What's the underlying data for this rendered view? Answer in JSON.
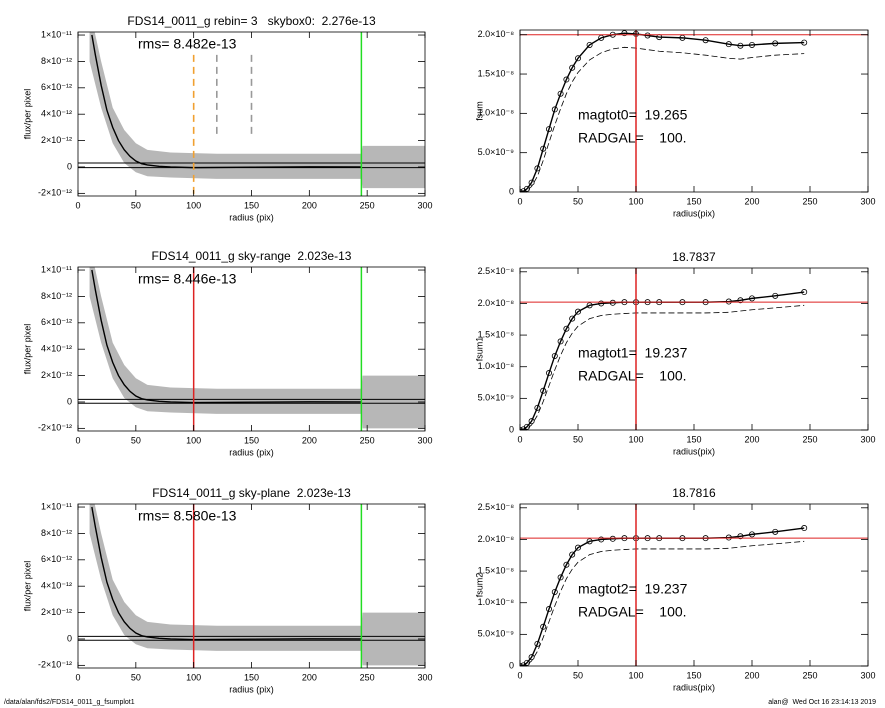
{
  "chart_data": [
    {
      "type": "line",
      "title": "FDS14_0011_g rebin= 3   skybox0:  2.276e-13",
      "annotations": [
        "rms= 8.482e-13"
      ],
      "xlabel": "radius (pix)",
      "ylabel": "flux/per pixel",
      "xlim": [
        0,
        300
      ],
      "ylim": [
        -2.2e-12,
        1.023e-11
      ],
      "xticks": [
        0,
        50,
        100,
        150,
        200,
        250,
        300
      ],
      "yticks": [
        {
          "value": -2e-12,
          "label": "-2×10⁻¹²"
        },
        0,
        {
          "value": 2e-12,
          "label": "2×10⁻¹²"
        },
        {
          "value": 4e-12,
          "label": "4×10⁻¹²"
        },
        {
          "value": 6e-12,
          "label": "6×10⁻¹²"
        },
        {
          "value": 8e-12,
          "label": "8×10⁻¹²"
        },
        {
          "value": 1e-11,
          "label": "1×10⁻¹¹"
        }
      ],
      "band": {
        "color": "#aaaaaa",
        "x": [
          10,
          20,
          30,
          40,
          50,
          60,
          80,
          120,
          160,
          200,
          245,
          246,
          300
        ],
        "high": [
          1.2e-11,
          8e-12,
          4.5e-12,
          2.8e-12,
          1.8e-12,
          1.3e-12,
          1.1e-12,
          1e-12,
          1e-12,
          1e-12,
          1e-12,
          1.6e-12,
          1.6e-12
        ],
        "low": [
          8e-12,
          4.5e-12,
          1.8e-12,
          3e-13,
          -4e-13,
          -7e-13,
          -8e-13,
          -9e-13,
          -9e-13,
          -9e-13,
          -9e-13,
          -1.6e-12,
          -1.6e-12
        ]
      },
      "series": [
        {
          "color": "#000000",
          "x": [
            12,
            15,
            20,
            25,
            30,
            35,
            40,
            45,
            50,
            55,
            60,
            70,
            80,
            100,
            150,
            200,
            245
          ],
          "values": [
            1e-11,
            8.5e-12,
            6.2e-12,
            4.3e-12,
            3e-12,
            2e-12,
            1.3e-12,
            8e-13,
            4.5e-13,
            2.5e-13,
            1.5e-13,
            5e-14,
            0,
            -5e-14,
            -2e-14,
            1e-14,
            0
          ]
        }
      ],
      "hlines": [
        {
          "value": 3e-13,
          "color": "#000000"
        },
        {
          "value": -5e-14,
          "color": "#000000"
        }
      ],
      "vlines": [
        {
          "value": 100,
          "color": "#f0a030",
          "dash": true,
          "span": [
            -2.2e-12,
            8.5e-12
          ]
        },
        {
          "value": 120,
          "color": "#999999",
          "dash": true,
          "span": [
            2.2e-12,
            8.5e-12
          ]
        },
        {
          "value": 150,
          "color": "#999999",
          "dash": true,
          "span": [
            2.2e-12,
            8.5e-12
          ]
        },
        {
          "value": 245,
          "color": "#22dd22"
        }
      ]
    },
    {
      "type": "line",
      "annotations": [
        "magtot0=  19.265",
        "RADGAL=    100."
      ],
      "xlabel": "radius(pix)",
      "ylabel": "fsum",
      "xlim": [
        0,
        300
      ],
      "ylim": [
        0,
        2.06e-08
      ],
      "xticks": [
        0,
        50,
        100,
        150,
        200,
        250,
        300
      ],
      "yticks": [
        0,
        {
          "value": 5e-09,
          "label": "5.0×10⁻⁹"
        },
        {
          "value": 1e-08,
          "label": "1.0×10⁻⁸"
        },
        {
          "value": 1.5e-08,
          "label": "1.5×10⁻⁸"
        },
        {
          "value": 2e-08,
          "label": "2.0×10⁻⁸"
        }
      ],
      "series": [
        {
          "color": "#000000",
          "markers": "circle",
          "x": [
            0,
            3,
            6,
            10,
            15,
            20,
            25,
            30,
            35,
            40,
            45,
            50,
            60,
            70,
            80,
            90,
            100,
            110,
            120,
            140,
            160,
            180,
            190,
            200,
            220,
            245
          ],
          "values": [
            0,
            1e-10,
            4e-10,
            1.2e-09,
            3e-09,
            5.5e-09,
            8e-09,
            1.05e-08,
            1.25e-08,
            1.43e-08,
            1.58e-08,
            1.7e-08,
            1.87e-08,
            1.96e-08,
            2e-08,
            2.02e-08,
            2.01e-08,
            1.99e-08,
            1.97e-08,
            1.96e-08,
            1.93e-08,
            1.88e-08,
            1.86e-08,
            1.87e-08,
            1.89e-08,
            1.9e-08
          ]
        },
        {
          "color": "#000000",
          "dash": true,
          "x": [
            0,
            3,
            6,
            10,
            15,
            20,
            25,
            30,
            35,
            40,
            45,
            50,
            60,
            70,
            80,
            90,
            100,
            110,
            120,
            140,
            160,
            180,
            190,
            200,
            220,
            245
          ],
          "values": [
            0,
            5e-11,
            2e-10,
            7e-10,
            2e-09,
            4e-09,
            6.3e-09,
            8.5e-09,
            1.06e-08,
            1.25e-08,
            1.4e-08,
            1.52e-08,
            1.68e-08,
            1.77e-08,
            1.82e-08,
            1.84e-08,
            1.83e-08,
            1.81e-08,
            1.79e-08,
            1.77e-08,
            1.74e-08,
            1.7e-08,
            1.69e-08,
            1.71e-08,
            1.74e-08,
            1.76e-08
          ]
        }
      ],
      "hlines": [
        {
          "value": 2e-08,
          "color": "#dd2222"
        }
      ],
      "vlines": [
        {
          "value": 100,
          "color": "#dd2222"
        }
      ]
    },
    {
      "type": "line",
      "title": "FDS14_0011_g sky-range  2.023e-13",
      "annotations": [
        "rms= 8.446e-13"
      ],
      "xlabel": "radius (pix)",
      "ylabel": "flux/per pixel",
      "xlim": [
        0,
        300
      ],
      "ylim": [
        -2.2e-12,
        1.023e-11
      ],
      "xticks": [
        0,
        50,
        100,
        150,
        200,
        250,
        300
      ],
      "yticks": [
        {
          "value": -2e-12,
          "label": "-2×10⁻¹²"
        },
        0,
        {
          "value": 2e-12,
          "label": "2×10⁻¹²"
        },
        {
          "value": 4e-12,
          "label": "4×10⁻¹²"
        },
        {
          "value": 6e-12,
          "label": "6×10⁻¹²"
        },
        {
          "value": 8e-12,
          "label": "8×10⁻¹²"
        },
        {
          "value": 1e-11,
          "label": "1×10⁻¹¹"
        }
      ],
      "band": {
        "color": "#aaaaaa",
        "x": [
          10,
          20,
          30,
          40,
          50,
          60,
          80,
          120,
          160,
          200,
          245,
          246,
          300
        ],
        "high": [
          1.2e-11,
          8e-12,
          4.5e-12,
          2.8e-12,
          1.8e-12,
          1.3e-12,
          1.1e-12,
          1e-12,
          1e-12,
          1e-12,
          1e-12,
          2e-12,
          2e-12
        ],
        "low": [
          8e-12,
          4.5e-12,
          1.8e-12,
          3e-13,
          -4e-13,
          -7e-13,
          -8e-13,
          -9e-13,
          -9e-13,
          -9e-13,
          -9e-13,
          -2e-12,
          -2e-12
        ]
      },
      "series": [
        {
          "color": "#000000",
          "x": [
            12,
            15,
            20,
            25,
            30,
            35,
            40,
            45,
            50,
            55,
            60,
            70,
            80,
            100,
            150,
            200,
            245
          ],
          "values": [
            1e-11,
            8.5e-12,
            6.2e-12,
            4.3e-12,
            3e-12,
            2e-12,
            1.3e-12,
            8e-13,
            4.5e-13,
            2.5e-13,
            1.5e-13,
            5e-14,
            0,
            -5e-14,
            -2e-14,
            1e-14,
            0
          ]
        }
      ],
      "hlines": [
        {
          "value": 2e-13,
          "color": "#000000"
        },
        {
          "value": -1e-13,
          "color": "#000000"
        }
      ],
      "vlines": [
        {
          "value": 100,
          "color": "#dd2222"
        },
        {
          "value": 245,
          "color": "#22dd22"
        }
      ]
    },
    {
      "type": "line",
      "title": "18.7837",
      "annotations": [
        "magtot1=  19.237",
        "RADGAL=    100."
      ],
      "xlabel": "radius(pix)",
      "ylabel": "fsum1",
      "xlim": [
        0,
        300
      ],
      "ylim": [
        0,
        2.56e-08
      ],
      "xticks": [
        0,
        50,
        100,
        150,
        200,
        250,
        300
      ],
      "yticks": [
        0,
        {
          "value": 5e-09,
          "label": "5.0×10⁻⁹"
        },
        {
          "value": 1e-08,
          "label": "1.0×10⁻⁸"
        },
        {
          "value": 1.5e-08,
          "label": "1.5×10⁻⁸"
        },
        {
          "value": 2e-08,
          "label": "2.0×10⁻⁸"
        },
        {
          "value": 2.5e-08,
          "label": "2.5×10⁻⁸"
        }
      ],
      "series": [
        {
          "color": "#000000",
          "markers": "circle",
          "x": [
            0,
            3,
            6,
            10,
            15,
            20,
            25,
            30,
            35,
            40,
            45,
            50,
            60,
            70,
            80,
            90,
            100,
            110,
            120,
            140,
            160,
            180,
            190,
            200,
            220,
            245
          ],
          "values": [
            0,
            1e-10,
            5e-10,
            1.4e-09,
            3.5e-09,
            6.2e-09,
            9e-09,
            1.17e-08,
            1.4e-08,
            1.6e-08,
            1.76e-08,
            1.87e-08,
            1.97e-08,
            2e-08,
            2.01e-08,
            2.02e-08,
            2.02e-08,
            2.02e-08,
            2.02e-08,
            2.02e-08,
            2.02e-08,
            2.03e-08,
            2.05e-08,
            2.08e-08,
            2.12e-08,
            2.18e-08
          ]
        },
        {
          "color": "#000000",
          "dash": true,
          "x": [
            0,
            3,
            6,
            10,
            15,
            20,
            25,
            30,
            35,
            40,
            45,
            50,
            60,
            70,
            80,
            90,
            100,
            110,
            120,
            140,
            160,
            180,
            190,
            200,
            220,
            245
          ],
          "values": [
            0,
            5e-11,
            2e-10,
            8e-10,
            2.3e-09,
            4.5e-09,
            7e-09,
            9.5e-09,
            1.18e-08,
            1.38e-08,
            1.53e-08,
            1.64e-08,
            1.76e-08,
            1.81e-08,
            1.83e-08,
            1.84e-08,
            1.85e-08,
            1.85e-08,
            1.85e-08,
            1.85e-08,
            1.85e-08,
            1.86e-08,
            1.88e-08,
            1.9e-08,
            1.93e-08,
            1.97e-08
          ]
        }
      ],
      "hlines": [
        {
          "value": 2.02e-08,
          "color": "#dd2222"
        }
      ],
      "vlines": [
        {
          "value": 100,
          "color": "#dd2222"
        }
      ]
    },
    {
      "type": "line",
      "title": "FDS14_0011_g sky-plane  2.023e-13",
      "annotations": [
        "rms= 8.580e-13"
      ],
      "xlabel": "radius (pix)",
      "ylabel": "flux/per pixel",
      "xlim": [
        0,
        300
      ],
      "ylim": [
        -2.2e-12,
        1.023e-11
      ],
      "xticks": [
        0,
        50,
        100,
        150,
        200,
        250,
        300
      ],
      "yticks": [
        {
          "value": -2e-12,
          "label": "-2×10⁻¹²"
        },
        0,
        {
          "value": 2e-12,
          "label": "2×10⁻¹²"
        },
        {
          "value": 4e-12,
          "label": "4×10⁻¹²"
        },
        {
          "value": 6e-12,
          "label": "6×10⁻¹²"
        },
        {
          "value": 8e-12,
          "label": "8×10⁻¹²"
        },
        {
          "value": 1e-11,
          "label": "1×10⁻¹¹"
        }
      ],
      "band": {
        "color": "#aaaaaa",
        "x": [
          10,
          20,
          30,
          40,
          50,
          60,
          80,
          120,
          160,
          200,
          245,
          246,
          300
        ],
        "high": [
          1.2e-11,
          8e-12,
          4.5e-12,
          2.8e-12,
          1.8e-12,
          1.3e-12,
          1.1e-12,
          1e-12,
          1e-12,
          1e-12,
          1e-12,
          2e-12,
          2e-12
        ],
        "low": [
          8e-12,
          4.5e-12,
          1.8e-12,
          3e-13,
          -4e-13,
          -7e-13,
          -8e-13,
          -9e-13,
          -9e-13,
          -9e-13,
          -9e-13,
          -2e-12,
          -2e-12
        ]
      },
      "series": [
        {
          "color": "#000000",
          "x": [
            12,
            15,
            20,
            25,
            30,
            35,
            40,
            45,
            50,
            55,
            60,
            70,
            80,
            100,
            150,
            200,
            245
          ],
          "values": [
            1e-11,
            8.5e-12,
            6.2e-12,
            4.3e-12,
            3e-12,
            2e-12,
            1.3e-12,
            8e-13,
            4.5e-13,
            2.5e-13,
            1.5e-13,
            5e-14,
            0,
            -5e-14,
            -2e-14,
            1e-14,
            0
          ]
        }
      ],
      "hlines": [
        {
          "value": 2e-13,
          "color": "#000000"
        },
        {
          "value": -1e-13,
          "color": "#000000"
        }
      ],
      "vlines": [
        {
          "value": 100,
          "color": "#dd2222"
        },
        {
          "value": 245,
          "color": "#22dd22"
        }
      ]
    },
    {
      "type": "line",
      "title": "18.7816",
      "annotations": [
        "magtot2=  19.237",
        "RADGAL=    100."
      ],
      "xlabel": "radius(pix)",
      "ylabel": "fsum2",
      "xlim": [
        0,
        300
      ],
      "ylim": [
        0,
        2.56e-08
      ],
      "xticks": [
        0,
        50,
        100,
        150,
        200,
        250,
        300
      ],
      "yticks": [
        0,
        {
          "value": 5e-09,
          "label": "5.0×10⁻⁹"
        },
        {
          "value": 1e-08,
          "label": "1.0×10⁻⁸"
        },
        {
          "value": 1.5e-08,
          "label": "1.5×10⁻⁸"
        },
        {
          "value": 2e-08,
          "label": "2.0×10⁻⁸"
        },
        {
          "value": 2.5e-08,
          "label": "2.5×10⁻⁸"
        }
      ],
      "series": [
        {
          "color": "#000000",
          "markers": "circle",
          "x": [
            0,
            3,
            6,
            10,
            15,
            20,
            25,
            30,
            35,
            40,
            45,
            50,
            60,
            70,
            80,
            90,
            100,
            110,
            120,
            140,
            160,
            180,
            190,
            200,
            220,
            245
          ],
          "values": [
            0,
            1e-10,
            5e-10,
            1.4e-09,
            3.5e-09,
            6.2e-09,
            9e-09,
            1.17e-08,
            1.4e-08,
            1.6e-08,
            1.76e-08,
            1.87e-08,
            1.97e-08,
            2e-08,
            2.01e-08,
            2.02e-08,
            2.02e-08,
            2.02e-08,
            2.02e-08,
            2.02e-08,
            2.02e-08,
            2.03e-08,
            2.05e-08,
            2.08e-08,
            2.12e-08,
            2.18e-08
          ]
        },
        {
          "color": "#000000",
          "dash": true,
          "x": [
            0,
            3,
            6,
            10,
            15,
            20,
            25,
            30,
            35,
            40,
            45,
            50,
            60,
            70,
            80,
            90,
            100,
            110,
            120,
            140,
            160,
            180,
            190,
            200,
            220,
            245
          ],
          "values": [
            0,
            5e-11,
            2e-10,
            8e-10,
            2.3e-09,
            4.5e-09,
            7e-09,
            9.5e-09,
            1.18e-08,
            1.38e-08,
            1.53e-08,
            1.64e-08,
            1.76e-08,
            1.81e-08,
            1.83e-08,
            1.84e-08,
            1.85e-08,
            1.85e-08,
            1.85e-08,
            1.85e-08,
            1.85e-08,
            1.86e-08,
            1.88e-08,
            1.9e-08,
            1.93e-08,
            1.97e-08
          ]
        }
      ],
      "hlines": [
        {
          "value": 2.02e-08,
          "color": "#dd2222"
        }
      ],
      "vlines": [
        {
          "value": 100,
          "color": "#dd2222"
        }
      ]
    }
  ],
  "footer": {
    "left": "/data/alan/fds2/FDS14_0011_g_fsumplot1",
    "right": "alan@  Wed Oct 16 23:14:13 2019"
  }
}
